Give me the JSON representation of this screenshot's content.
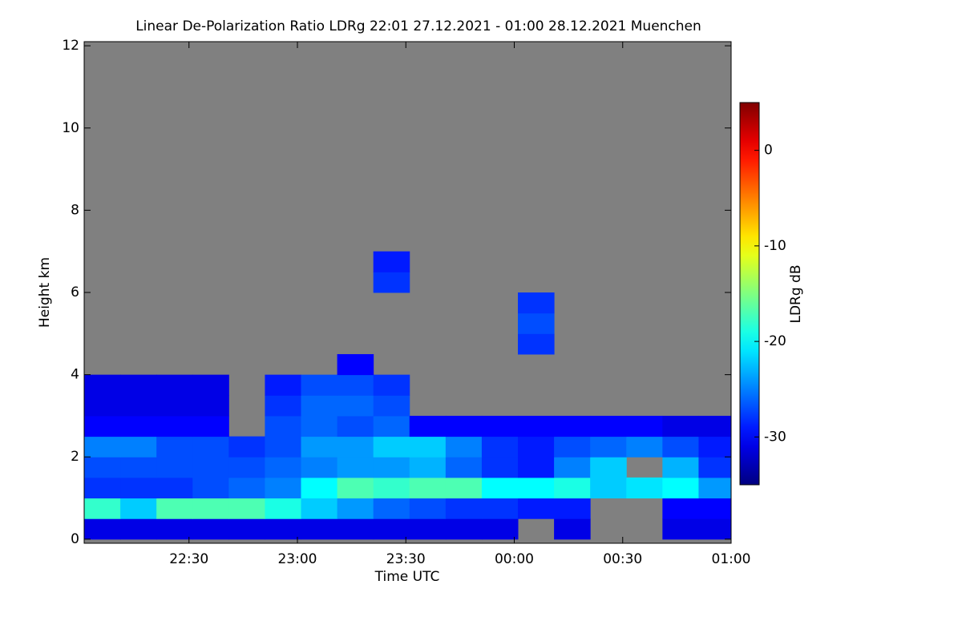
{
  "chart_data": {
    "type": "heatmap",
    "title": "Linear De-Polarization Ratio LDRg   22:01 27.12.2021 - 01:00 28.12.2021 Muenchen",
    "xlabel": "Time UTC",
    "ylabel": "Height km",
    "colorbar_label": "LDRg dB",
    "x": [
      6,
      16,
      26,
      36,
      46,
      56,
      66,
      76,
      86,
      96,
      106,
      116,
      126,
      136,
      146,
      156,
      166,
      176
    ],
    "y": [
      0.25,
      0.75,
      1.25,
      1.75,
      2.25,
      2.75,
      3.25,
      3.75,
      4.25,
      4.75,
      5.25,
      5.75,
      6.25,
      6.75
    ],
    "z": [
      [
        -31,
        -31,
        -31,
        -31,
        -31,
        -31,
        -31,
        -31,
        -31,
        -31,
        -31,
        -31,
        null,
        -31,
        null,
        null,
        -31,
        -31
      ],
      [
        -18,
        -22,
        -17,
        -17,
        -17,
        -19,
        -22,
        -24,
        -26,
        -27,
        -28,
        -28,
        -29,
        -29,
        null,
        null,
        -30,
        -30
      ],
      [
        -28,
        -28,
        -28,
        -27,
        -26,
        -25,
        -20,
        -17,
        -18,
        -17,
        -17,
        -20,
        -20,
        -19,
        -22,
        -21,
        -20,
        -24
      ],
      [
        -27,
        -27,
        -27,
        -27,
        -27,
        -26,
        -25,
        -24,
        -24,
        -23,
        -26,
        -28,
        -29,
        -25,
        -22,
        null,
        -23,
        -28
      ],
      [
        -25,
        -25,
        -27,
        -27,
        -28,
        -27,
        -24,
        -24,
        -22,
        -22,
        -25,
        -28,
        -29,
        -27,
        -26,
        -25,
        -27,
        -29
      ],
      [
        -30,
        -30,
        -30,
        -30,
        null,
        -27,
        -26,
        -27,
        -26,
        -30,
        -30,
        -30,
        -30,
        -30,
        -30,
        -30,
        -31,
        -31
      ],
      [
        -31,
        -31,
        -31,
        -31,
        null,
        -28,
        -26,
        -26,
        -27,
        null,
        null,
        null,
        null,
        null,
        null,
        null,
        null,
        null
      ],
      [
        -31,
        -31,
        -31,
        -31,
        null,
        -29,
        -27,
        -27,
        -28,
        null,
        null,
        null,
        null,
        null,
        null,
        null,
        null,
        null
      ],
      [
        null,
        null,
        null,
        null,
        null,
        null,
        null,
        -30,
        null,
        null,
        null,
        null,
        null,
        null,
        null,
        null,
        null,
        null
      ],
      [
        null,
        null,
        null,
        null,
        null,
        null,
        null,
        null,
        null,
        null,
        null,
        null,
        -28,
        null,
        null,
        null,
        null,
        null
      ],
      [
        null,
        null,
        null,
        null,
        null,
        null,
        null,
        null,
        null,
        null,
        null,
        null,
        -27,
        null,
        null,
        null,
        null,
        null
      ],
      [
        null,
        null,
        null,
        null,
        null,
        null,
        null,
        null,
        null,
        null,
        null,
        null,
        -28,
        null,
        null,
        null,
        null,
        null
      ],
      [
        null,
        null,
        null,
        null,
        null,
        null,
        null,
        null,
        -28,
        null,
        null,
        null,
        null,
        null,
        null,
        null,
        null,
        null
      ],
      [
        null,
        null,
        null,
        null,
        null,
        null,
        null,
        null,
        -29,
        null,
        null,
        null,
        null,
        null,
        null,
        null,
        null,
        null
      ]
    ],
    "xlim": [
      1,
      180
    ],
    "ylim": [
      -0.1,
      12.1
    ],
    "zlim": [
      -35,
      5
    ],
    "xticks": [
      {
        "value": 30,
        "label": "22:30"
      },
      {
        "value": 60,
        "label": "23:00"
      },
      {
        "value": 90,
        "label": "23:30"
      },
      {
        "value": 120,
        "label": "00:00"
      },
      {
        "value": 150,
        "label": "00:30"
      },
      {
        "value": 180,
        "label": "01:00"
      }
    ],
    "yticks": [
      0,
      2,
      4,
      6,
      8,
      10,
      12
    ],
    "zticks": [
      0,
      -10,
      -20,
      -30
    ],
    "background": "#808080",
    "colormap": "jet"
  }
}
